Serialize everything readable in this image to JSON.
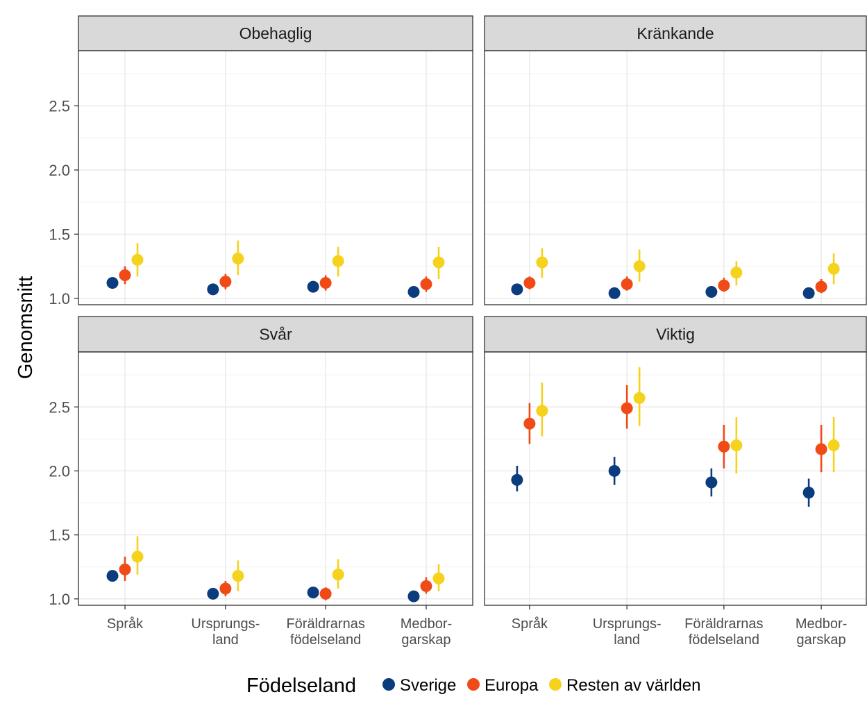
{
  "chart_data": {
    "type": "scatter",
    "ylabel": "Genomsnitt",
    "categories": [
      "Språk",
      "Ursprungs-\nland",
      "Föräldrarnas\nfödelseland",
      "Medbor-\ngarskap"
    ],
    "yticks": [
      "1.0",
      "1.5",
      "2.0",
      "2.5"
    ],
    "ylim": [
      0.95,
      2.93
    ],
    "grid": true,
    "legend": {
      "title": "Födelseland",
      "position": "bottom",
      "entries": [
        "Sverige",
        "Europa",
        "Resten av världen"
      ]
    },
    "series_colors": {
      "Sverige": "#0b3c7d",
      "Europa": "#f04a17",
      "Resten av världen": "#f5d21c"
    },
    "panels": [
      {
        "title": "Obehaglig",
        "series": [
          {
            "name": "Sverige",
            "values": [
              1.12,
              1.07,
              1.09,
              1.05
            ],
            "ci_low": [
              1.08,
              1.04,
              1.06,
              1.02
            ],
            "ci_high": [
              1.15,
              1.1,
              1.12,
              1.08
            ]
          },
          {
            "name": "Europa",
            "values": [
              1.18,
              1.13,
              1.12,
              1.11
            ],
            "ci_low": [
              1.11,
              1.07,
              1.06,
              1.05
            ],
            "ci_high": [
              1.25,
              1.19,
              1.18,
              1.17
            ]
          },
          {
            "name": "Resten av världen",
            "values": [
              1.3,
              1.31,
              1.29,
              1.28
            ],
            "ci_low": [
              1.17,
              1.18,
              1.17,
              1.15
            ],
            "ci_high": [
              1.43,
              1.45,
              1.4,
              1.4
            ]
          }
        ]
      },
      {
        "title": "Kränkande",
        "series": [
          {
            "name": "Sverige",
            "values": [
              1.07,
              1.04,
              1.05,
              1.04
            ],
            "ci_low": [
              1.04,
              1.01,
              1.02,
              1.01
            ],
            "ci_high": [
              1.1,
              1.07,
              1.08,
              1.07
            ]
          },
          {
            "name": "Europa",
            "values": [
              1.12,
              1.11,
              1.1,
              1.09
            ],
            "ci_low": [
              1.07,
              1.06,
              1.05,
              1.04
            ],
            "ci_high": [
              1.17,
              1.17,
              1.16,
              1.15
            ]
          },
          {
            "name": "Resten av världen",
            "values": [
              1.28,
              1.25,
              1.2,
              1.23
            ],
            "ci_low": [
              1.16,
              1.13,
              1.1,
              1.11
            ],
            "ci_high": [
              1.39,
              1.38,
              1.29,
              1.35
            ]
          }
        ]
      },
      {
        "title": "Svår",
        "series": [
          {
            "name": "Sverige",
            "values": [
              1.18,
              1.04,
              1.05,
              1.02
            ],
            "ci_low": [
              1.14,
              1.01,
              1.02,
              0.99
            ],
            "ci_high": [
              1.22,
              1.07,
              1.08,
              1.05
            ]
          },
          {
            "name": "Europa",
            "values": [
              1.23,
              1.08,
              1.04,
              1.1
            ],
            "ci_low": [
              1.14,
              1.02,
              0.99,
              1.04
            ],
            "ci_high": [
              1.33,
              1.14,
              1.09,
              1.17
            ]
          },
          {
            "name": "Resten av världen",
            "values": [
              1.33,
              1.18,
              1.19,
              1.16
            ],
            "ci_low": [
              1.19,
              1.06,
              1.08,
              1.06
            ],
            "ci_high": [
              1.49,
              1.3,
              1.31,
              1.27
            ]
          }
        ]
      },
      {
        "title": "Viktig",
        "series": [
          {
            "name": "Sverige",
            "values": [
              1.93,
              2.0,
              1.91,
              1.83
            ],
            "ci_low": [
              1.84,
              1.89,
              1.8,
              1.72
            ],
            "ci_high": [
              2.04,
              2.11,
              2.02,
              1.94
            ]
          },
          {
            "name": "Europa",
            "values": [
              2.37,
              2.49,
              2.19,
              2.17
            ],
            "ci_low": [
              2.21,
              2.33,
              2.02,
              1.99
            ],
            "ci_high": [
              2.53,
              2.67,
              2.36,
              2.36
            ]
          },
          {
            "name": "Resten av världen",
            "values": [
              2.47,
              2.57,
              2.2,
              2.2
            ],
            "ci_low": [
              2.27,
              2.35,
              1.98,
              1.99
            ],
            "ci_high": [
              2.69,
              2.81,
              2.42,
              2.42
            ]
          }
        ]
      }
    ]
  }
}
